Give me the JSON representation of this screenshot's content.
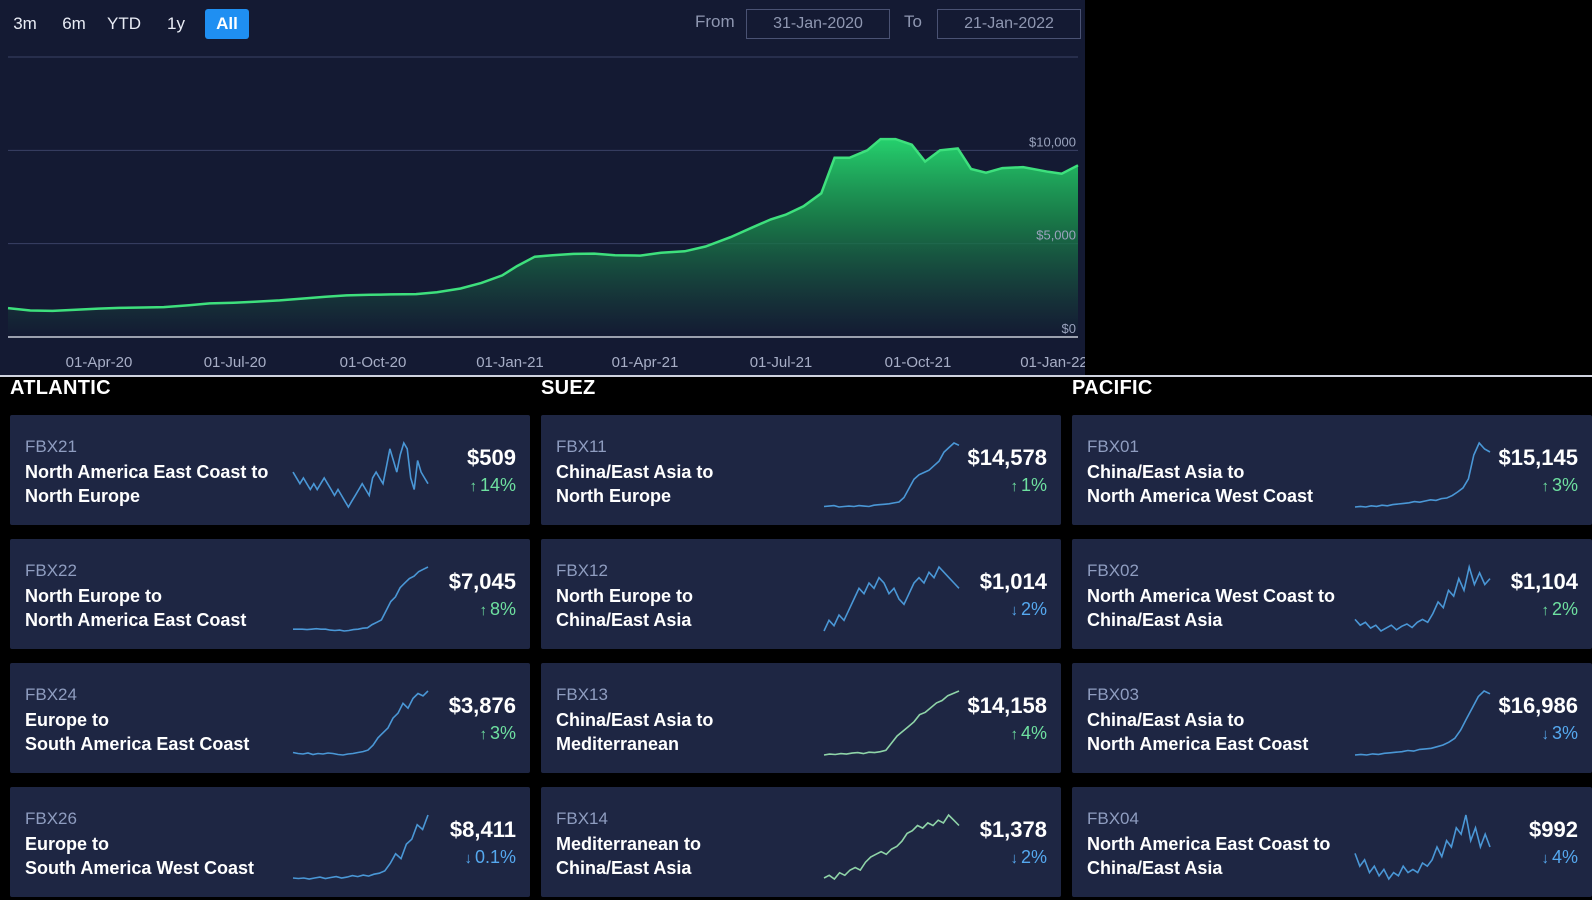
{
  "range_buttons": [
    "3m",
    "6m",
    "YTD",
    "1y",
    "All"
  ],
  "active_range": "All",
  "date_range": {
    "from_label": "From",
    "from_value": "31-Jan-2020",
    "to_label": "To",
    "to_value": "21-Jan-2022"
  },
  "colors": {
    "panel": "#141a33",
    "card": "#1e2643",
    "accent": "#1f8ff2",
    "line_green": "#3ee07d",
    "spark_blue": "#4a97d6",
    "spark_green": "#8fd4a8",
    "up": "#6ee0a0",
    "down": "#55a8ef"
  },
  "chart_data": {
    "type": "area",
    "title": "",
    "xlabel": "",
    "ylabel": "",
    "x_tick_labels": [
      "01-Apr-20",
      "01-Jul-20",
      "01-Oct-20",
      "01-Jan-21",
      "01-Apr-21",
      "01-Jul-21",
      "01-Oct-21",
      "01-Jan-22"
    ],
    "y_tick_labels": [
      "$0",
      "$5,000",
      "$10,000"
    ],
    "y_ticks": [
      0,
      5000,
      10000
    ],
    "ylim": [
      0,
      15000
    ],
    "xlim": [
      "2020-01-31",
      "2022-01-21"
    ],
    "grid": true,
    "x": [
      "2020-01-31",
      "2020-02-15",
      "2020-03-01",
      "2020-03-15",
      "2020-04-01",
      "2020-04-15",
      "2020-05-01",
      "2020-05-15",
      "2020-06-01",
      "2020-06-15",
      "2020-07-01",
      "2020-07-15",
      "2020-08-01",
      "2020-08-15",
      "2020-09-01",
      "2020-09-15",
      "2020-10-01",
      "2020-10-15",
      "2020-11-01",
      "2020-11-15",
      "2020-12-01",
      "2020-12-15",
      "2020-12-29",
      "2021-01-08",
      "2021-01-20",
      "2021-02-01",
      "2021-02-15",
      "2021-03-01",
      "2021-03-15",
      "2021-04-01",
      "2021-04-15",
      "2021-05-01",
      "2021-05-15",
      "2021-06-01",
      "2021-06-15",
      "2021-06-28",
      "2021-07-08",
      "2021-07-20",
      "2021-08-01",
      "2021-08-10",
      "2021-08-20",
      "2021-09-01",
      "2021-09-10",
      "2021-09-20",
      "2021-10-01",
      "2021-10-10",
      "2021-10-20",
      "2021-11-01",
      "2021-11-10",
      "2021-11-20",
      "2021-12-01",
      "2021-12-15",
      "2022-01-01",
      "2022-01-10",
      "2022-01-21"
    ],
    "values": [
      1550,
      1420,
      1400,
      1450,
      1520,
      1560,
      1580,
      1600,
      1700,
      1800,
      1840,
      1890,
      1960,
      2050,
      2160,
      2230,
      2260,
      2280,
      2300,
      2400,
      2600,
      2900,
      3300,
      3800,
      4300,
      4380,
      4450,
      4470,
      4380,
      4360,
      4510,
      4590,
      4850,
      5350,
      5850,
      6300,
      6550,
      7000,
      7700,
      9600,
      9600,
      10000,
      10600,
      10600,
      10300,
      9400,
      10000,
      10100,
      9000,
      8800,
      9050,
      9100,
      8850,
      8750,
      9200
    ]
  },
  "groups": [
    {
      "title": "ATLANTIC",
      "cards": [
        {
          "code": "FBX21",
          "route": [
            "North America East Coast to",
            "North Europe"
          ],
          "price": "$509",
          "change": "14%",
          "direction": "up",
          "spark_color": "blue",
          "spark": [
            6,
            5,
            4,
            5,
            4,
            3,
            4,
            3,
            4,
            5,
            4,
            3,
            2,
            3,
            2,
            1,
            0,
            1,
            2,
            3,
            4,
            3,
            2,
            5,
            6,
            5,
            4,
            7,
            10,
            8,
            6,
            9,
            11,
            10,
            5,
            3,
            8,
            6,
            5,
            4
          ]
        },
        {
          "code": "FBX22",
          "route": [
            "North Europe to",
            "North America East Coast"
          ],
          "price": "$7,045",
          "change": "8%",
          "direction": "up",
          "spark_color": "blue",
          "spark": [
            1,
            1,
            1,
            0.9,
            1,
            1.1,
            1,
            1,
            0.8,
            0.7,
            0.8,
            0.6,
            0.7,
            0.9,
            1,
            1.2,
            1.3,
            2,
            2.5,
            3,
            5,
            7,
            8,
            10,
            11,
            12,
            12.5,
            13.5,
            14,
            14.5
          ]
        },
        {
          "code": "FBX24",
          "route": [
            "Europe to",
            "South America East Coast"
          ],
          "price": "$3,876",
          "change": "3%",
          "direction": "up",
          "spark_color": "blue",
          "spark": [
            1,
            0.8,
            0.7,
            0.9,
            0.6,
            0.8,
            0.7,
            0.9,
            0.8,
            0.6,
            0.5,
            0.7,
            0.8,
            1,
            1.2,
            1.5,
            2.5,
            4,
            5,
            6,
            8,
            9,
            11,
            10,
            12,
            13,
            12.5,
            13.5
          ]
        },
        {
          "code": "FBX26",
          "route": [
            "Europe to",
            "South America West Coast"
          ],
          "price": "$8,411",
          "change": "0.1%",
          "direction": "down",
          "spark_color": "blue",
          "spark": [
            1,
            0.9,
            1,
            0.8,
            1,
            1.2,
            0.9,
            1.1,
            1.3,
            1,
            1.2,
            1.5,
            1.3,
            1.6,
            1.4,
            1.8,
            2,
            2.5,
            4,
            6,
            5,
            8,
            9,
            12,
            11,
            14
          ]
        }
      ]
    },
    {
      "title": "SUEZ",
      "cards": [
        {
          "code": "FBX11",
          "route": [
            "China/East Asia to",
            "North Europe"
          ],
          "price": "$14,578",
          "change": "1%",
          "direction": "up",
          "spark_color": "blue",
          "spark": [
            1,
            1.1,
            1.2,
            0.9,
            1,
            1.1,
            1,
            1.2,
            1.1,
            1,
            1.3,
            1.4,
            1.5,
            1.6,
            1.8,
            2,
            3,
            5,
            7,
            8,
            8.5,
            9,
            10,
            11,
            13,
            14,
            15,
            14.5
          ]
        },
        {
          "code": "FBX12",
          "route": [
            "North Europe to",
            "China/East Asia"
          ],
          "price": "$1,014",
          "change": "2%",
          "direction": "down",
          "spark_color": "blue",
          "spark": [
            1,
            3,
            2,
            4,
            3,
            5,
            7,
            9,
            8,
            10,
            9,
            11,
            10,
            8,
            9,
            7,
            6,
            8,
            10,
            11,
            10,
            12,
            11,
            13,
            12,
            11,
            10,
            9
          ]
        },
        {
          "code": "FBX13",
          "route": [
            "China/East Asia to",
            "Mediterranean"
          ],
          "price": "$14,158",
          "change": "4%",
          "direction": "up",
          "spark_color": "green",
          "spark": [
            1,
            1.2,
            1.1,
            1.3,
            1.2,
            1.4,
            1.5,
            1.3,
            1.6,
            1.5,
            1.7,
            2,
            3.5,
            5,
            6,
            7,
            8,
            9.5,
            10,
            11,
            12,
            12.5,
            13.5,
            14,
            14.5
          ]
        },
        {
          "code": "FBX14",
          "route": [
            "Mediterranean to",
            "China/East Asia"
          ],
          "price": "$1,378",
          "change": "2%",
          "direction": "down",
          "spark_color": "green",
          "spark": [
            1,
            1.5,
            0.8,
            2,
            1.5,
            2.5,
            3,
            2.5,
            4,
            5,
            5.5,
            6,
            5.5,
            6.5,
            7,
            8,
            9.5,
            10,
            11,
            10.5,
            11.5,
            11,
            12,
            11.5,
            13,
            12,
            11
          ]
        }
      ]
    },
    {
      "title": "PACIFIC",
      "cards": [
        {
          "code": "FBX01",
          "route": [
            "China/East Asia to",
            "North America West Coast"
          ],
          "price": "$15,145",
          "change": "3%",
          "direction": "up",
          "spark_color": "blue",
          "spark": [
            0.3,
            0.4,
            0.3,
            0.5,
            0.4,
            0.6,
            0.5,
            0.7,
            0.8,
            0.9,
            1,
            1.2,
            1.1,
            1.3,
            1.5,
            1.4,
            1.7,
            1.8,
            2.2,
            2.8,
            3.5,
            5,
            9,
            11,
            10,
            9.5
          ]
        },
        {
          "code": "FBX02",
          "route": [
            "North America West Coast to",
            "China/East Asia"
          ],
          "price": "$1,104",
          "change": "2%",
          "direction": "up",
          "spark_color": "blue",
          "spark": [
            3,
            2,
            2.5,
            1.5,
            2,
            1,
            1.5,
            2,
            1.2,
            1.8,
            2.2,
            1.6,
            2.5,
            3,
            2.5,
            4,
            6,
            5,
            8,
            7,
            10,
            8,
            12,
            9,
            11,
            9,
            10
          ]
        },
        {
          "code": "FBX03",
          "route": [
            "China/East Asia to",
            "North America East Coast"
          ],
          "price": "$16,986",
          "change": "3%",
          "direction": "down",
          "spark_color": "blue",
          "spark": [
            0.5,
            0.6,
            0.5,
            0.7,
            0.6,
            0.8,
            0.9,
            1,
            1.1,
            1.3,
            1.2,
            1.5,
            1.6,
            1.7,
            2,
            2.3,
            2.8,
            3.5,
            5,
            7,
            9,
            11,
            12,
            11.5
          ]
        },
        {
          "code": "FBX04",
          "route": [
            "North America East Coast to",
            "China/East Asia"
          ],
          "price": "$992",
          "change": "4%",
          "direction": "down",
          "spark_color": "blue",
          "spark": [
            5,
            3,
            4,
            2,
            3,
            1.5,
            2.5,
            1,
            2,
            1.5,
            3,
            2,
            2.5,
            2,
            3.5,
            3,
            4,
            6,
            4.5,
            7,
            6,
            9,
            8,
            11,
            7,
            9,
            6,
            8,
            6
          ]
        }
      ]
    }
  ]
}
